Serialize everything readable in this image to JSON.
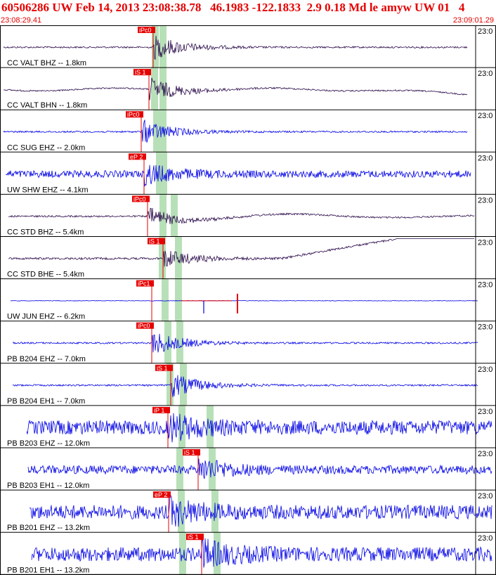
{
  "header": {
    "title": "60506286 UW Feb 14, 2013 23:08:38.78   46.1983 -122.1833  2.9 0.18 Md le amyw UW 01   4",
    "start_time": "23:08:29.41",
    "end_time": "23:09:01.29"
  },
  "colors": {
    "title": "#e60000",
    "pick": "#e60000",
    "window": "#b8e0b8",
    "trace_blue": "#0000e6",
    "trace_dark": "#2a0a4a",
    "grid": "#000000"
  },
  "traces": [
    {
      "label": "CC VALT BHZ -- 1.8km",
      "time_label": "23:0",
      "pick": "iPc0",
      "color": "dark",
      "style": "quiet_event"
    },
    {
      "label": "CC VALT BHN -- 1.8km",
      "time_label": "23:0",
      "pick": "iS 1",
      "color": "dark",
      "style": "drift_event"
    },
    {
      "label": "CC SUG EHZ -- 2.0km",
      "time_label": "23:0",
      "pick": "iPc0",
      "color": "blue",
      "style": "quiet_event"
    },
    {
      "label": "UW SHW EHZ -- 4.1km",
      "time_label": "23:0",
      "pick": "eP 2",
      "color": "blue",
      "style": "noisy"
    },
    {
      "label": "CC STD BHZ -- 5.4km",
      "time_label": "23:0",
      "pick": "iPc0",
      "color": "dark",
      "style": "long_wave"
    },
    {
      "label": "CC STD BHE -- 5.4km",
      "time_label": "23:0",
      "pick": "iS 1",
      "color": "dark",
      "style": "rise"
    },
    {
      "label": "UW JUN EHZ -- 6.2km",
      "time_label": "23:0",
      "pick": "iPc1",
      "color": "blue",
      "style": "flat"
    },
    {
      "label": "PB B204 EHZ -- 7.0km",
      "time_label": "23:0",
      "pick": "iPc0",
      "color": "blue",
      "style": "quiet_event"
    },
    {
      "label": "PB B204 EH1 -- 7.0km",
      "time_label": "23:0",
      "pick": "iS 1",
      "color": "blue",
      "style": "quiet_event"
    },
    {
      "label": "PB B203 EHZ -- 12.0km",
      "time_label": "23:0",
      "pick": "iP 1",
      "color": "blue",
      "style": "noisy_big"
    },
    {
      "label": "PB B203 EH1 -- 12.0km",
      "time_label": "23:0",
      "pick": "iS 1",
      "color": "blue",
      "style": "noisy_mid"
    },
    {
      "label": "PB B201 EHZ -- 13.2km",
      "time_label": "23:0",
      "pick": "eP 2",
      "color": "blue",
      "style": "noisy_big"
    },
    {
      "label": "PB B201 EH1 -- 13.2km",
      "time_label": "23:0",
      "pick": "iS 1",
      "color": "blue",
      "style": "noisy_big"
    }
  ]
}
